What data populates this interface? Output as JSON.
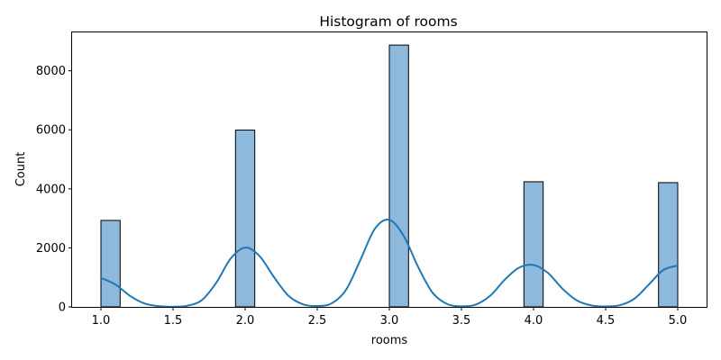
{
  "chart_data": {
    "type": "bar",
    "title": "Histogram of rooms",
    "xlabel": "rooms",
    "ylabel": "Count",
    "xlim": [
      0.8,
      5.2
    ],
    "ylim": [
      0,
      9300
    ],
    "xticks": [
      1.0,
      1.5,
      2.0,
      2.5,
      3.0,
      3.5,
      4.0,
      4.5,
      5.0
    ],
    "xtick_labels": [
      "1.0",
      "1.5",
      "2.0",
      "2.5",
      "3.0",
      "3.5",
      "4.0",
      "4.5",
      "5.0"
    ],
    "yticks": [
      0,
      2000,
      4000,
      6000,
      8000
    ],
    "ytick_labels": [
      "0",
      "2000",
      "4000",
      "6000",
      "8000"
    ],
    "bars": [
      {
        "x0": 1.0,
        "x1": 1.1333,
        "count": 2930
      },
      {
        "x0": 1.9333,
        "x1": 2.0667,
        "count": 5990
      },
      {
        "x0": 3.0,
        "x1": 3.1333,
        "count": 8870
      },
      {
        "x0": 3.9333,
        "x1": 4.0667,
        "count": 4240
      },
      {
        "x0": 4.8667,
        "x1": 5.0,
        "count": 4210
      }
    ],
    "kde": {
      "x": [
        1.0,
        1.1,
        1.2,
        1.3,
        1.4,
        1.5,
        1.6,
        1.7,
        1.8,
        1.9,
        2.0,
        2.1,
        2.2,
        2.3,
        2.4,
        2.5,
        2.6,
        2.7,
        2.8,
        2.9,
        3.0,
        3.1,
        3.2,
        3.3,
        3.4,
        3.5,
        3.6,
        3.7,
        3.8,
        3.9,
        4.0,
        4.1,
        4.2,
        4.3,
        4.4,
        4.5,
        4.6,
        4.7,
        4.8,
        4.9,
        5.0
      ],
      "y": [
        980,
        760,
        380,
        120,
        25,
        5,
        40,
        230,
        820,
        1640,
        2010,
        1720,
        1010,
        380,
        90,
        30,
        120,
        580,
        1600,
        2650,
        2950,
        2400,
        1350,
        480,
        100,
        20,
        80,
        380,
        920,
        1330,
        1420,
        1150,
        620,
        220,
        50,
        15,
        60,
        280,
        760,
        1250,
        1400
      ]
    },
    "bar_color": "#8db9dc",
    "bar_edge_color": "#000000",
    "line_color": "#1f77b4",
    "grid": false,
    "legend": "none"
  }
}
